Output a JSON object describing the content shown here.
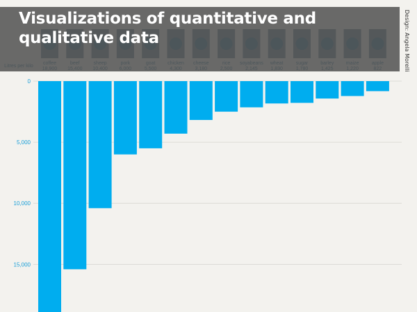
{
  "title": "Visualizations of quantitative and qualitative data",
  "credit": "Design: Angela Morelli",
  "chart_data": {
    "type": "bar",
    "orientation": "vertical-downward",
    "header_label": "Litres per kilo",
    "categories": [
      "coffee",
      "beef",
      "sheep",
      "pork",
      "goat",
      "chicken",
      "cheese",
      "rice",
      "soyabeans",
      "wheat",
      "sugar",
      "barley",
      "maize",
      "apple"
    ],
    "values": [
      18900,
      15400,
      10400,
      6000,
      5500,
      4300,
      3180,
      2500,
      2145,
      1830,
      1780,
      1425,
      1220,
      822
    ],
    "value_labels": [
      "18,900",
      "15,400",
      "10,400",
      "6,000",
      "5,500",
      "4,300",
      "3,180",
      "2,500",
      "2,145",
      "1,830",
      "1,780",
      "1,425",
      "1,220",
      "822"
    ],
    "yticks": [
      0,
      5000,
      10000,
      15000
    ],
    "ytick_labels": [
      "0",
      "5,000",
      "10,000",
      "15,000"
    ],
    "ylim": [
      0,
      18900
    ],
    "grid": true,
    "colors": {
      "bar": "#00adef",
      "tick": "#1a9fd8",
      "icon": "#0a5a7e",
      "icon_bg": "#4e6b7a"
    }
  }
}
